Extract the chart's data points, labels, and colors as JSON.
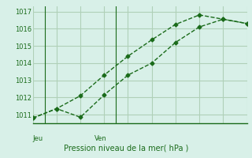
{
  "title": "Pression niveau de la mer( hPa )",
  "background_color": "#d8f0e8",
  "grid_color": "#b0d0b8",
  "line_color": "#1a6b1a",
  "ylim": [
    1010.5,
    1017.3
  ],
  "yticks": [
    1011,
    1012,
    1013,
    1014,
    1015,
    1016,
    1017
  ],
  "line1_x": [
    0,
    1,
    2,
    3,
    4,
    5,
    6,
    7,
    8,
    9
  ],
  "line1_y": [
    1010.8,
    1011.35,
    1012.1,
    1013.3,
    1014.4,
    1015.35,
    1016.25,
    1016.8,
    1016.55,
    1016.3
  ],
  "line2_x": [
    0,
    1,
    2,
    3,
    4,
    5,
    6,
    7,
    8,
    9
  ],
  "line2_y": [
    1010.8,
    1011.35,
    1010.85,
    1012.15,
    1013.3,
    1014.0,
    1015.2,
    1016.1,
    1016.55,
    1016.3
  ],
  "xlim": [
    0,
    9
  ]
}
